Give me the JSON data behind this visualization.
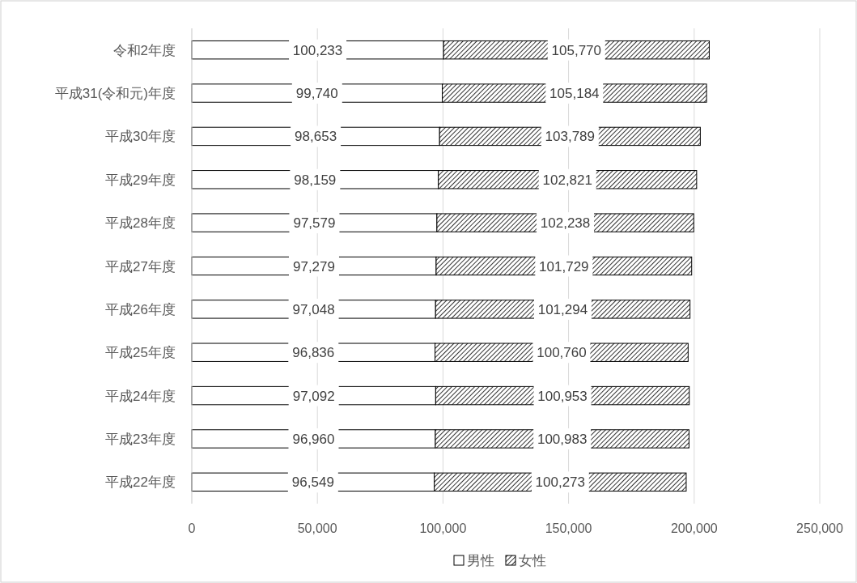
{
  "chart_data": {
    "type": "bar",
    "orientation": "horizontal",
    "stacked": true,
    "grid": "x",
    "legend": "bottom",
    "categories": [
      "令和2年度",
      "平成31(令和元)年度",
      "平成30年度",
      "平成29年度",
      "平成28年度",
      "平成27年度",
      "平成26年度",
      "平成25年度",
      "平成24年度",
      "平成23年度",
      "平成22年度"
    ],
    "series": [
      {
        "name": "男性",
        "color": "#ffffff",
        "values": [
          100233,
          99740,
          98653,
          98159,
          97579,
          97279,
          97048,
          96836,
          97092,
          96960,
          96549
        ],
        "value_labels": [
          "100,233",
          "99,740",
          "98,653",
          "98,159",
          "97,579",
          "97,279",
          "97,048",
          "96,836",
          "97,092",
          "96,960",
          "96,549"
        ]
      },
      {
        "name": "女性",
        "color": "#000000",
        "values": [
          105770,
          105184,
          103789,
          102821,
          102238,
          101729,
          101294,
          100760,
          100953,
          100983,
          100273
        ],
        "value_labels": [
          "105,770",
          "105,184",
          "103,789",
          "102,821",
          "102,238",
          "101,729",
          "101,294",
          "100,760",
          "100,953",
          "100,983",
          "100,273"
        ]
      }
    ],
    "xlim": [
      0,
      250000
    ],
    "xticks": [
      0,
      {
        "value": 50000,
        "label": "50,000"
      },
      {
        "value": 100000,
        "label": "100,000"
      },
      {
        "value": 150000,
        "label": "150,000"
      },
      {
        "value": 200000,
        "label": "200,000"
      },
      {
        "value": 250000,
        "label": "250,000"
      }
    ]
  }
}
